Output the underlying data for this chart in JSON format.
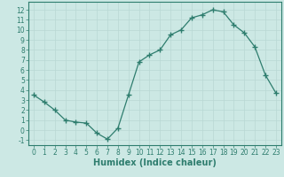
{
  "x": [
    0,
    1,
    2,
    3,
    4,
    5,
    6,
    7,
    8,
    9,
    10,
    11,
    12,
    13,
    14,
    15,
    16,
    17,
    18,
    19,
    20,
    21,
    22,
    23
  ],
  "y": [
    3.5,
    2.8,
    2.0,
    1.0,
    0.8,
    0.7,
    -0.3,
    -0.9,
    0.2,
    3.5,
    6.8,
    7.5,
    8.0,
    9.5,
    10.0,
    11.2,
    11.5,
    12.0,
    11.8,
    10.5,
    9.7,
    8.3,
    5.5,
    3.7
  ],
  "ylim": [
    -1.5,
    12.8
  ],
  "xlim": [
    -0.5,
    23.5
  ],
  "yticks": [
    -1,
    0,
    1,
    2,
    3,
    4,
    5,
    6,
    7,
    8,
    9,
    10,
    11,
    12
  ],
  "xticks": [
    0,
    1,
    2,
    3,
    4,
    5,
    6,
    7,
    8,
    9,
    10,
    11,
    12,
    13,
    14,
    15,
    16,
    17,
    18,
    19,
    20,
    21,
    22,
    23
  ],
  "xlabel": "Humidex (Indice chaleur)",
  "line_color": "#2e7d6e",
  "marker": "+",
  "marker_size": 4,
  "bg_color": "#cce8e4",
  "grid_color": "#b8d8d4",
  "tick_fontsize": 5.5,
  "xlabel_fontsize": 7
}
